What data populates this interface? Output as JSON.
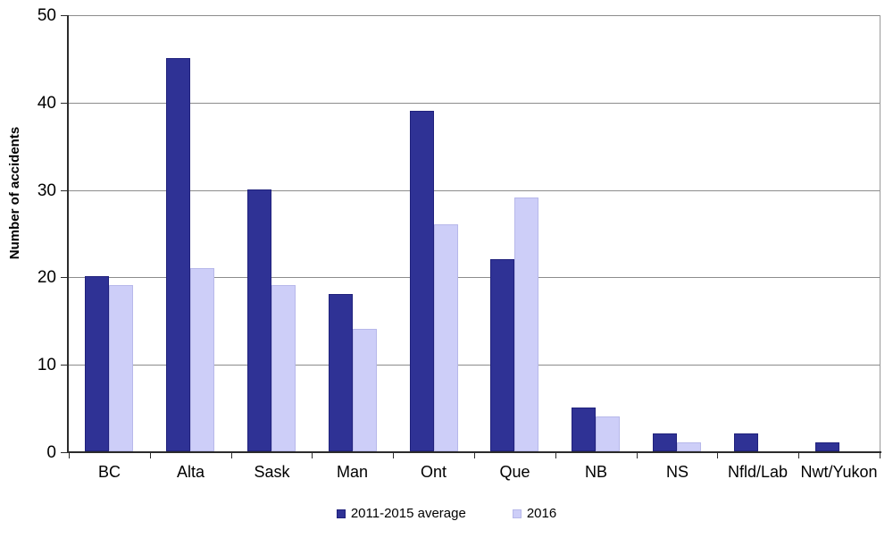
{
  "chart_data": {
    "type": "bar",
    "title": "",
    "xlabel": "",
    "ylabel": "Number of accidents",
    "ylim": [
      0,
      50
    ],
    "yticks": [
      0,
      10,
      20,
      30,
      40,
      50
    ],
    "grid": "horizontal",
    "legend_position": "bottom",
    "categories": [
      "BC",
      "Alta",
      "Sask",
      "Man",
      "Ont",
      "Que",
      "NB",
      "NS",
      "Nfld/Lab",
      "Nwt/Yukon"
    ],
    "series": [
      {
        "name": "2011-2015 average",
        "values": [
          20,
          45,
          30,
          18,
          39,
          22,
          5,
          2,
          2,
          1
        ],
        "fill": "#2f3295",
        "border": "#20217c"
      },
      {
        "name": "2016",
        "values": [
          19,
          21,
          19,
          14,
          26,
          29,
          4,
          1,
          0,
          0
        ],
        "fill": "#cdcef8",
        "border": "#b7b8ea"
      }
    ]
  },
  "colors": {
    "background": "#ffffff",
    "gridline": "#8c8c8c",
    "axis": "#2b2b2b",
    "plot_right_border": "#999999",
    "text": "#000000"
  }
}
